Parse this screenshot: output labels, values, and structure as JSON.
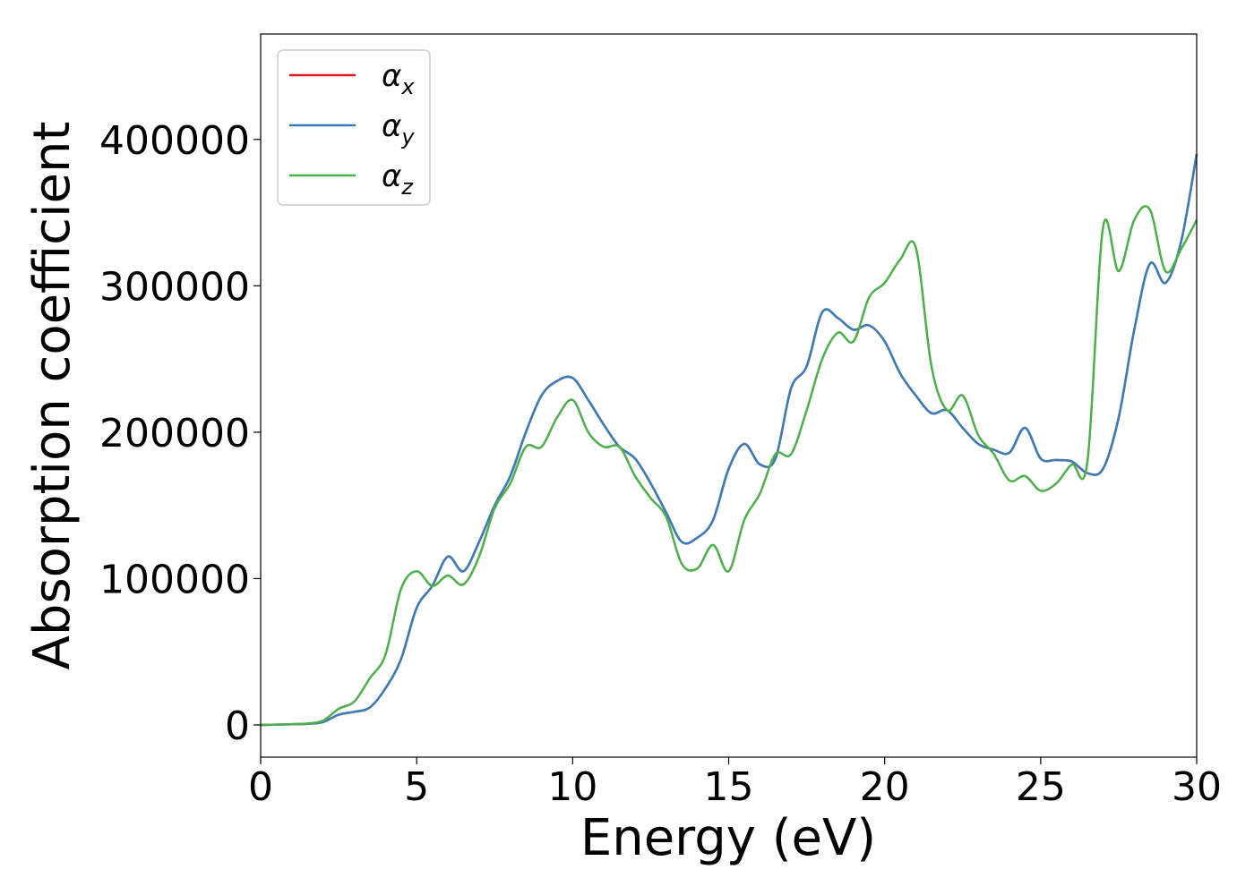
{
  "chart_data": {
    "type": "line",
    "title": "",
    "xlabel": "Energy (eV)",
    "ylabel": "Absorption coefficient",
    "xlim": [
      0,
      30
    ],
    "ylim": [
      -22000,
      472000
    ],
    "xticks": [
      0,
      5,
      10,
      15,
      20,
      25,
      30
    ],
    "yticks": [
      0,
      100000,
      200000,
      300000,
      400000
    ],
    "grid": false,
    "legend_position": "top-left",
    "series": [
      {
        "name": "α",
        "subscript": "x",
        "color": "#e41a1c",
        "x": [
          0,
          1,
          1.5,
          2,
          2.5,
          3,
          3.5,
          4,
          4.5,
          5,
          5.5,
          6,
          6.5,
          7,
          7.5,
          8,
          8.5,
          9,
          9.5,
          10,
          10.5,
          11,
          11.5,
          12,
          12.5,
          13,
          13.5,
          14,
          14.5,
          15,
          15.5,
          16,
          16.5,
          17,
          17.5,
          18,
          18.5,
          19,
          19.5,
          20,
          20.5,
          21,
          21.5,
          22,
          22.5,
          23,
          23.5,
          24,
          24.5,
          25,
          25.5,
          26,
          26.5,
          27,
          27.5,
          28,
          28.5,
          29,
          29.5,
          30
        ],
        "values": [
          0,
          500,
          800,
          2000,
          7000,
          9000,
          12000,
          25000,
          45000,
          80000,
          95000,
          115000,
          105000,
          125000,
          150000,
          170000,
          200000,
          225000,
          235000,
          237000,
          222000,
          205000,
          190000,
          182000,
          165000,
          145000,
          125000,
          128000,
          140000,
          175000,
          192000,
          178000,
          182000,
          230000,
          245000,
          282000,
          278000,
          270000,
          273000,
          262000,
          240000,
          225000,
          213000,
          215000,
          203000,
          192000,
          188000,
          186000,
          203000,
          182000,
          181000,
          180000,
          172000,
          175000,
          210000,
          270000,
          315000,
          302000,
          330000,
          390000
        ]
      },
      {
        "name": "α",
        "subscript": "y",
        "color": "#377eb8",
        "x": [
          0,
          1,
          1.5,
          2,
          2.5,
          3,
          3.5,
          4,
          4.5,
          5,
          5.5,
          6,
          6.5,
          7,
          7.5,
          8,
          8.5,
          9,
          9.5,
          10,
          10.5,
          11,
          11.5,
          12,
          12.5,
          13,
          13.5,
          14,
          14.5,
          15,
          15.5,
          16,
          16.5,
          17,
          17.5,
          18,
          18.5,
          19,
          19.5,
          20,
          20.5,
          21,
          21.5,
          22,
          22.5,
          23,
          23.5,
          24,
          24.5,
          25,
          25.5,
          26,
          26.5,
          27,
          27.5,
          28,
          28.5,
          29,
          29.5,
          30
        ],
        "values": [
          0,
          500,
          800,
          2000,
          7000,
          9000,
          12000,
          25000,
          45000,
          80000,
          95000,
          115000,
          105000,
          125000,
          150000,
          170000,
          200000,
          225000,
          235000,
          237000,
          222000,
          205000,
          190000,
          182000,
          165000,
          145000,
          125000,
          128000,
          140000,
          175000,
          192000,
          178000,
          182000,
          230000,
          245000,
          282000,
          278000,
          270000,
          273000,
          262000,
          240000,
          225000,
          213000,
          215000,
          203000,
          192000,
          188000,
          186000,
          203000,
          182000,
          181000,
          180000,
          172000,
          175000,
          210000,
          270000,
          315000,
          302000,
          330000,
          390000
        ]
      },
      {
        "name": "α",
        "subscript": "z",
        "color": "#4daf4a",
        "x": [
          0,
          1,
          1.5,
          2,
          2.5,
          3,
          3.5,
          4,
          4.5,
          5,
          5.5,
          6,
          6.5,
          7,
          7.5,
          8,
          8.5,
          9,
          9.5,
          10,
          10.5,
          11,
          11.5,
          12,
          12.5,
          13,
          13.5,
          14,
          14.5,
          15,
          15.5,
          16,
          16.5,
          17,
          17.5,
          18,
          18.5,
          19,
          19.5,
          20,
          20.5,
          21,
          21.5,
          22,
          22.5,
          23,
          23.5,
          24,
          24.5,
          25,
          25.5,
          26,
          26.5,
          27,
          27.5,
          28,
          28.5,
          29,
          29.5,
          30
        ],
        "values": [
          0,
          500,
          1000,
          3000,
          11000,
          16000,
          32000,
          48000,
          93000,
          105000,
          95000,
          102000,
          96000,
          115000,
          148000,
          165000,
          190000,
          190000,
          210000,
          222000,
          200000,
          190000,
          190000,
          170000,
          155000,
          142000,
          110000,
          107000,
          123000,
          105000,
          140000,
          158000,
          185000,
          185000,
          215000,
          250000,
          268000,
          262000,
          292000,
          302000,
          318000,
          326000,
          245000,
          215000,
          225000,
          198000,
          185000,
          167000,
          170000,
          160000,
          165000,
          178000,
          180000,
          340000,
          310000,
          345000,
          352000,
          310000,
          325000,
          345000
        ]
      }
    ]
  }
}
